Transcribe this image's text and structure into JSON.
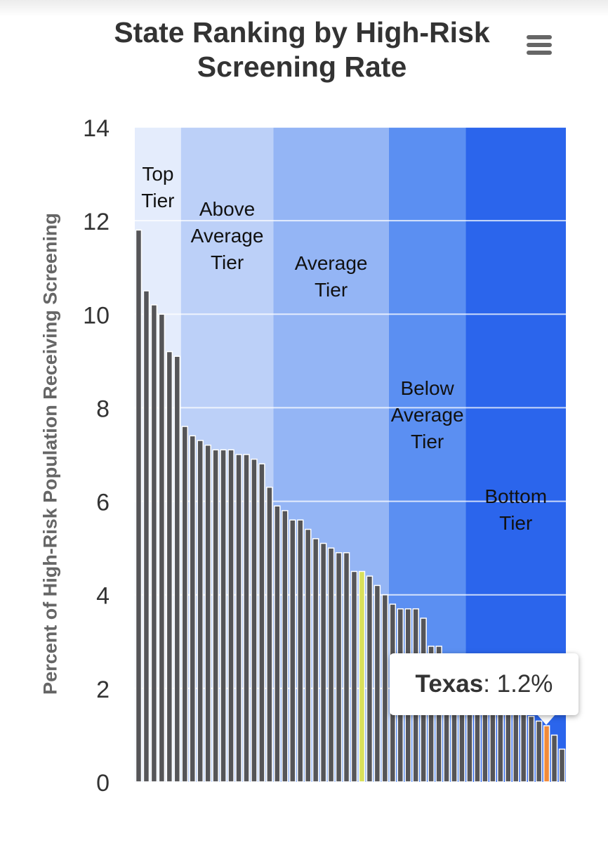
{
  "menu": {
    "icon": "hamburger-menu-icon"
  },
  "tooltip": {
    "state": "Texas",
    "separator": ": ",
    "value_text": "1.2%"
  },
  "colors": {
    "bar": "#555558",
    "bar_edge": "#ffffff",
    "highlight_green": "#d9e05a",
    "highlight_orange": "#f08a3a",
    "title": "#333333",
    "axis_text": "#333333",
    "axis_title": "#666666",
    "gridline": "#ffffff"
  },
  "chart_data": {
    "type": "bar",
    "title": "State Ranking by High-Risk Screening Rate",
    "xlabel": "",
    "ylabel": "Percent of High-Risk Population Receiving Screening",
    "ylim": [
      0,
      14
    ],
    "yticks": [
      0,
      2,
      4,
      6,
      8,
      10,
      12,
      14
    ],
    "grid": true,
    "legend": "none",
    "values": [
      11.8,
      10.5,
      10.2,
      10.0,
      9.2,
      9.1,
      7.6,
      7.4,
      7.3,
      7.2,
      7.1,
      7.1,
      7.1,
      7.0,
      7.0,
      6.9,
      6.8,
      6.3,
      5.9,
      5.8,
      5.6,
      5.6,
      5.4,
      5.2,
      5.1,
      5.0,
      4.9,
      4.9,
      4.5,
      4.5,
      4.4,
      4.2,
      4.0,
      3.8,
      3.7,
      3.7,
      3.7,
      3.5,
      2.9,
      2.9,
      2.7,
      2.5,
      2.5,
      2.4,
      2.3,
      2.2,
      2.0,
      1.9,
      1.8,
      1.6,
      1.5,
      1.4,
      1.3,
      1.2,
      1.0,
      0.7
    ],
    "highlighted": [
      {
        "index": 29,
        "color": "highlight_green"
      },
      {
        "index": 53,
        "color": "highlight_orange",
        "label": "Texas",
        "value": 1.2
      }
    ],
    "bands": [
      {
        "label": "Top\nTier",
        "start_index": 0,
        "end_index": 5,
        "color": "#e4ecfc"
      },
      {
        "label": "Above\nAverage\nTier",
        "start_index": 6,
        "end_index": 17,
        "color": "#bcd0f8"
      },
      {
        "label": "Average\nTier",
        "start_index": 18,
        "end_index": 32,
        "color": "#94b5f5"
      },
      {
        "label": "Below\nAverage\nTier",
        "start_index": 33,
        "end_index": 42,
        "color": "#5b8ff2"
      },
      {
        "label": "Bottom\nTier",
        "start_index": 43,
        "end_index": 55,
        "color": "#2b65ec"
      }
    ]
  }
}
